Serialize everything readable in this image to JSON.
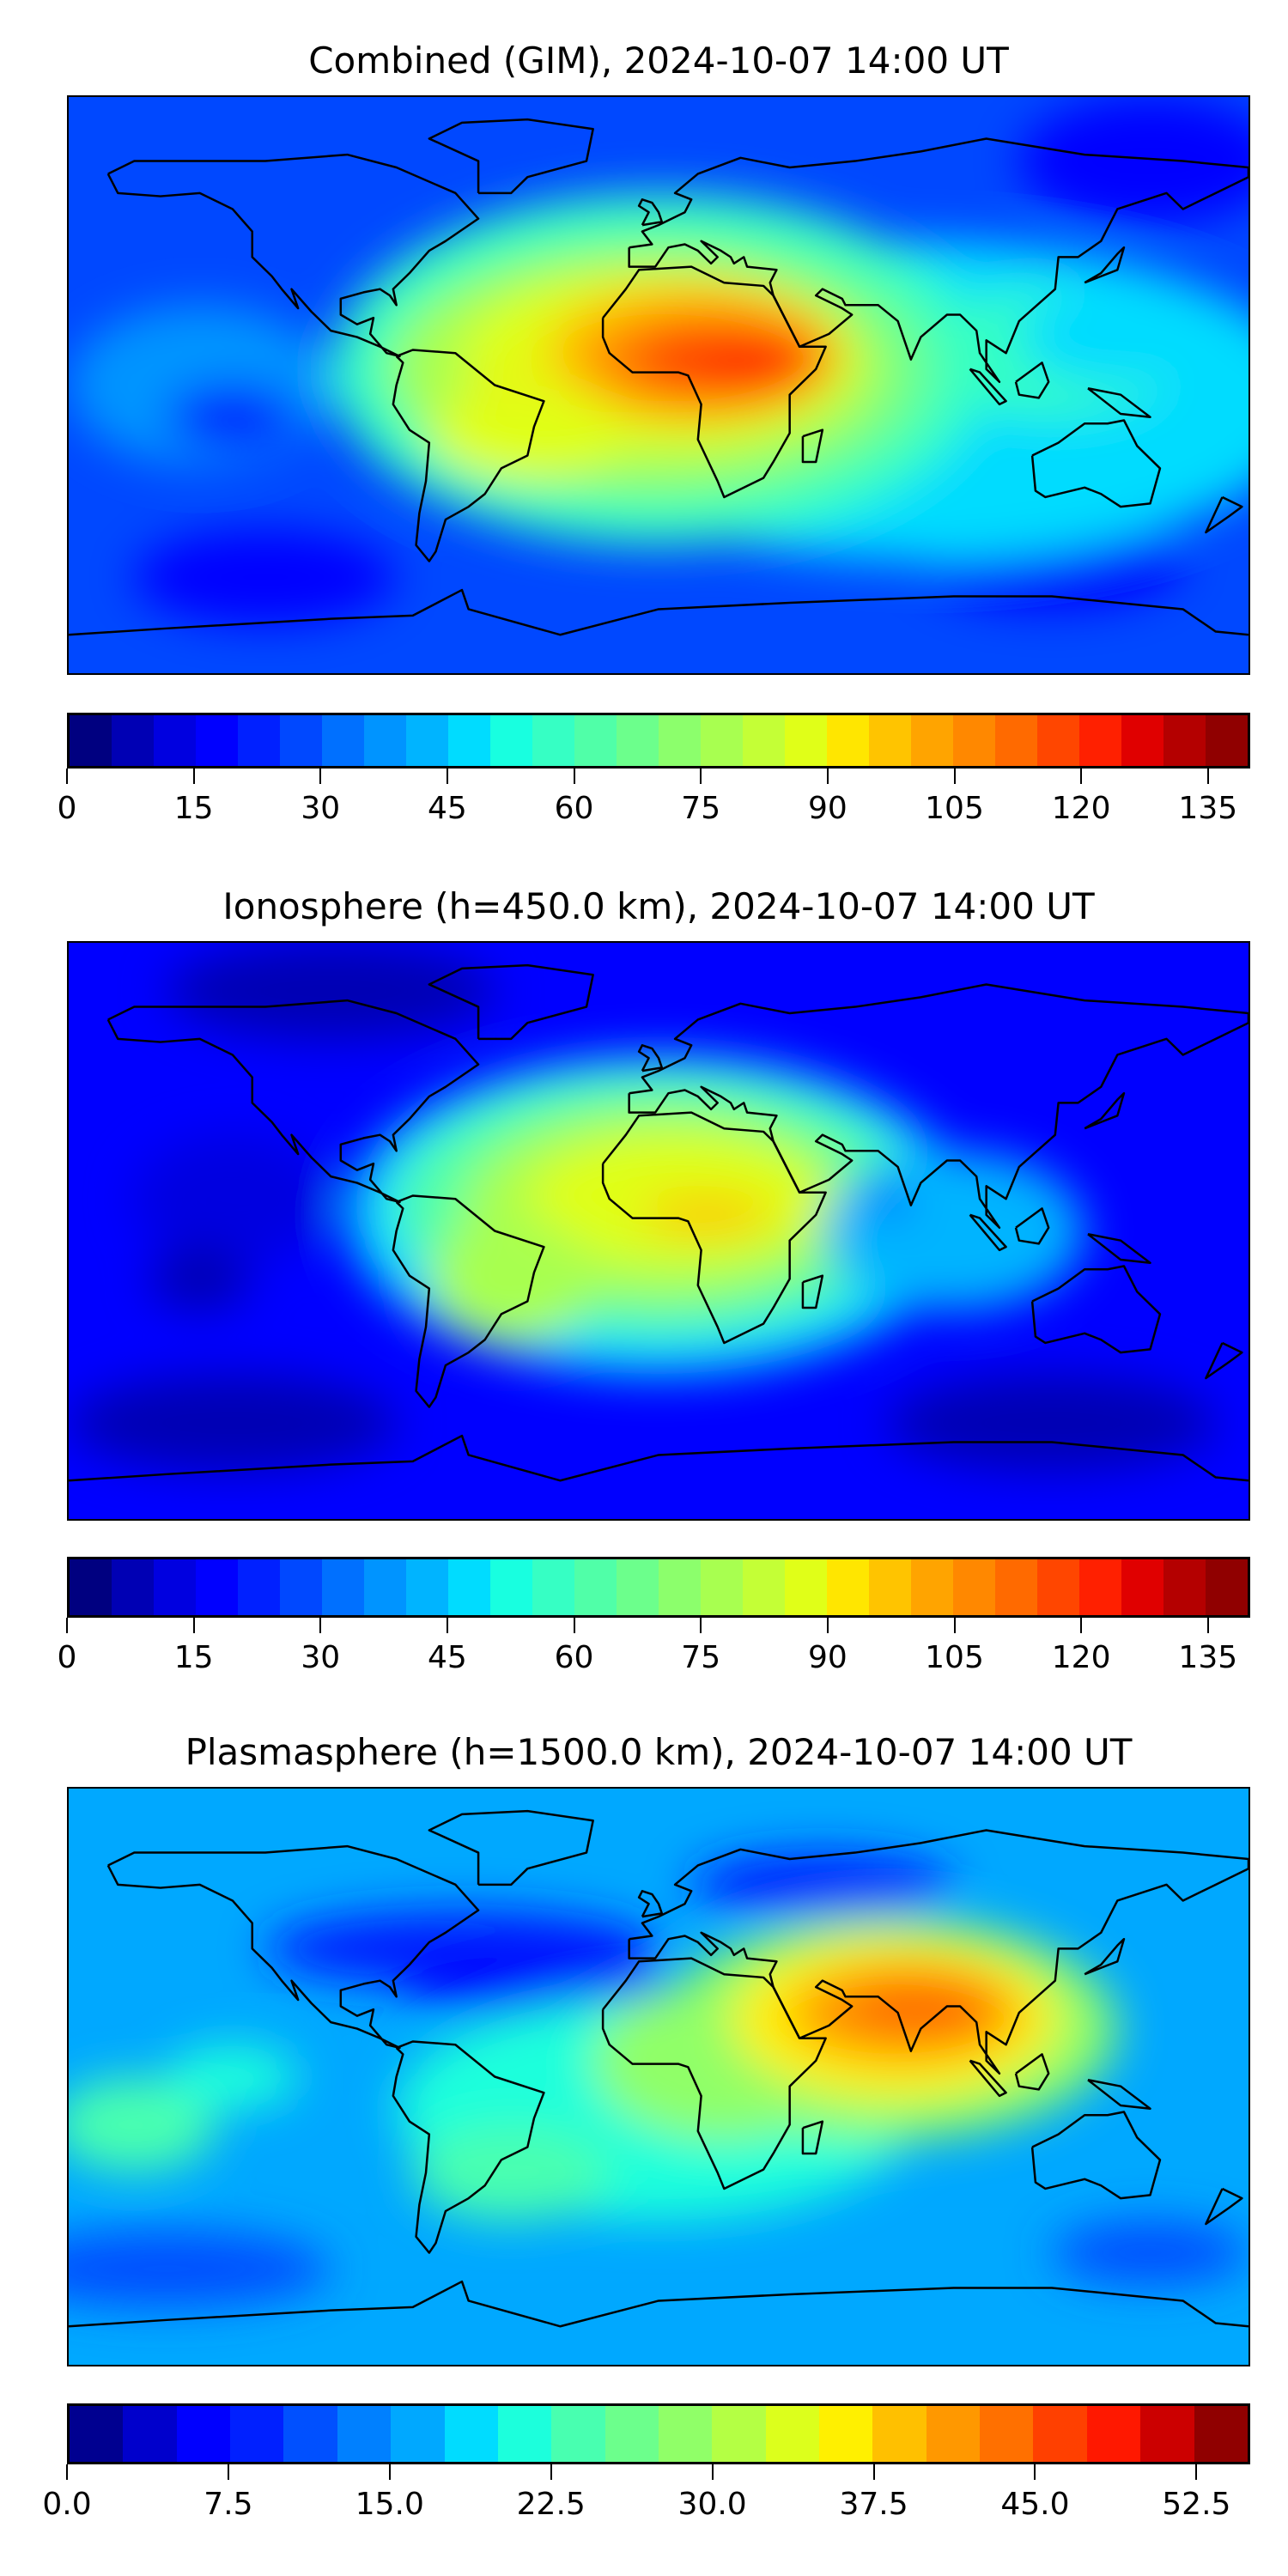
{
  "panels": [
    {
      "id": "combined",
      "title": "Combined (GIM), 2024-10-07 14:00 UT",
      "colorbar": {
        "min": 0,
        "max": 140,
        "step": 5,
        "ticks": [
          0,
          15,
          30,
          45,
          60,
          75,
          90,
          105,
          120,
          135
        ],
        "tick_labels": [
          "0",
          "15",
          "30",
          "45",
          "60",
          "75",
          "90",
          "105",
          "120",
          "135"
        ]
      }
    },
    {
      "id": "ionosphere",
      "title": "Ionosphere  (h=450.0 km), 2024-10-07 14:00 UT",
      "colorbar": {
        "min": 0,
        "max": 140,
        "step": 5,
        "ticks": [
          0,
          15,
          30,
          45,
          60,
          75,
          90,
          105,
          120,
          135
        ],
        "tick_labels": [
          "0",
          "15",
          "30",
          "45",
          "60",
          "75",
          "90",
          "105",
          "120",
          "135"
        ]
      }
    },
    {
      "id": "plasmasphere",
      "title": "Plasmasphere (h=1500.0 km), 2024-10-07 14:00 UT",
      "colorbar": {
        "min": 0,
        "max": 55,
        "step": 2.5,
        "ticks": [
          0,
          7.5,
          15,
          22.5,
          30,
          37.5,
          45,
          52.5
        ],
        "tick_labels": [
          "0.0",
          "7.5",
          "15.0",
          "22.5",
          "30.0",
          "37.5",
          "45.0",
          "52.5"
        ]
      }
    }
  ],
  "colors": {
    "coastline": "#000000",
    "jet28": [
      "#000080",
      "#0000b4",
      "#0000e0",
      "#0000ff",
      "#0020ff",
      "#0048ff",
      "#0070ff",
      "#0094ff",
      "#00b4ff",
      "#00dcff",
      "#18ffe0",
      "#36ffc4",
      "#50ffa8",
      "#6cff8c",
      "#8cff6c",
      "#a8ff50",
      "#c4ff36",
      "#e0ff18",
      "#ffe600",
      "#ffc400",
      "#ffa400",
      "#ff8800",
      "#ff6a00",
      "#ff4600",
      "#ff2000",
      "#e00000",
      "#b40000",
      "#900000"
    ],
    "jet22": [
      "#000090",
      "#0000cc",
      "#0000ff",
      "#0020ff",
      "#0050ff",
      "#0080ff",
      "#00a8ff",
      "#00dcff",
      "#1cffdc",
      "#48ffb0",
      "#6cff8c",
      "#90ff68",
      "#b4ff44",
      "#dcff1c",
      "#fff000",
      "#ffc000",
      "#ff9800",
      "#ff7000",
      "#ff4000",
      "#ff1800",
      "#cc0000",
      "#900000"
    ]
  }
}
